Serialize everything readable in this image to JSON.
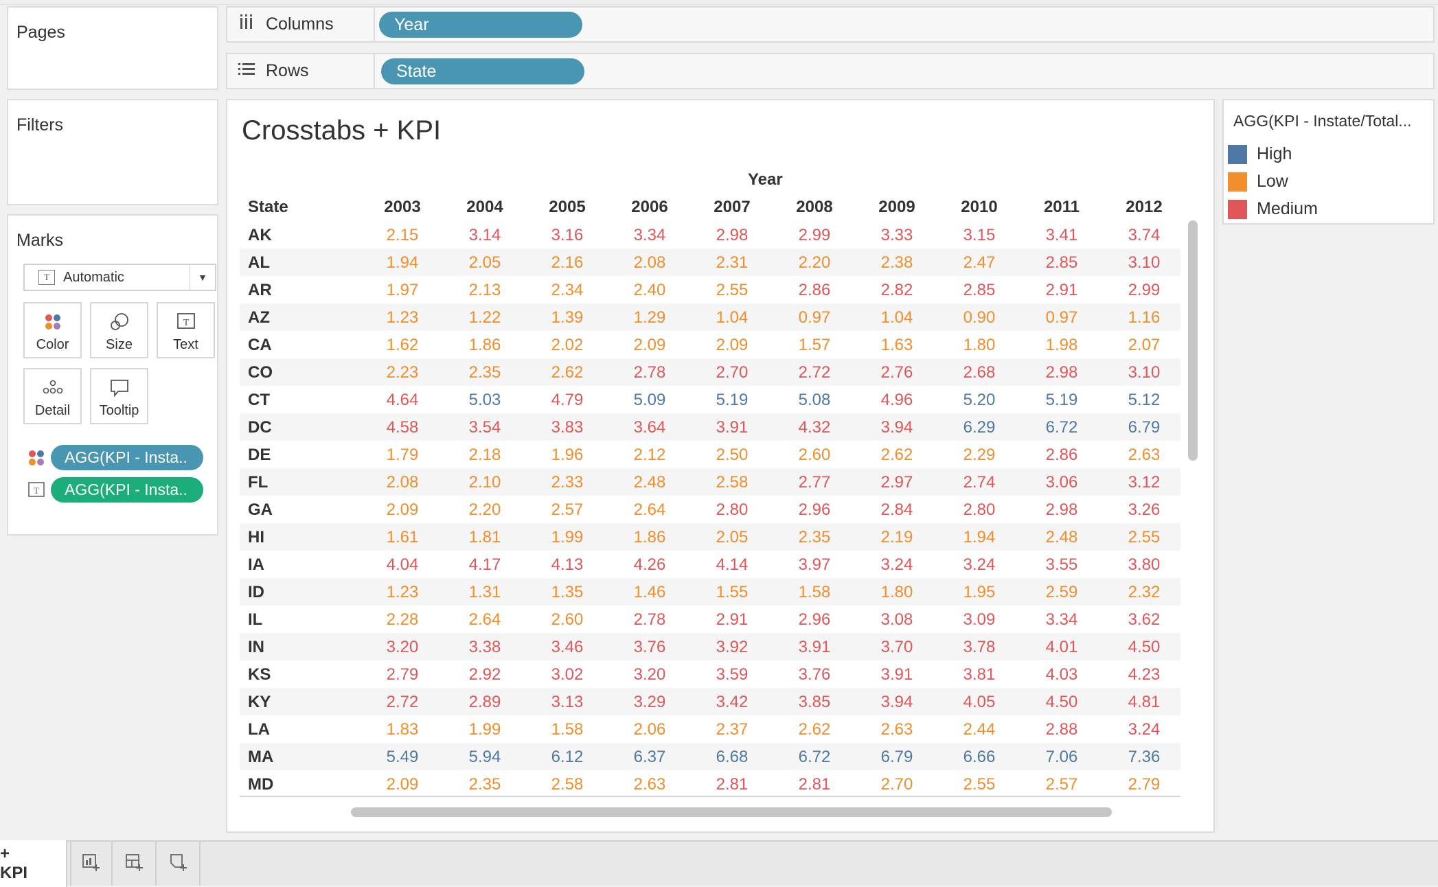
{
  "left_panels": {
    "pages_title": "Pages",
    "filters_title": "Filters",
    "marks_title": "Marks"
  },
  "shelves": {
    "columns": {
      "label": "Columns",
      "pill": "Year"
    },
    "rows": {
      "label": "Rows",
      "pill": "State"
    }
  },
  "marks": {
    "mark_type": "Automatic",
    "buttons": [
      "Color",
      "Size",
      "Text",
      "Detail",
      "Tooltip"
    ],
    "pills": [
      {
        "label": "AGG(KPI - Insta..",
        "color": "#4996b2"
      },
      {
        "label": "AGG(KPI - Insta..",
        "color": "#1bae7a"
      }
    ]
  },
  "view": {
    "title": "Crosstabs + KPI",
    "column_group": "Year",
    "row_header": "State",
    "years": [
      "2003",
      "2004",
      "2005",
      "2006",
      "2007",
      "2008",
      "2009",
      "2010",
      "2011",
      "2012"
    ],
    "rows": [
      {
        "state": "AK",
        "values": [
          "2.15",
          "3.14",
          "3.16",
          "3.34",
          "2.98",
          "2.99",
          "3.33",
          "3.15",
          "3.41",
          "3.74"
        ],
        "levels": [
          "L",
          "M",
          "M",
          "M",
          "M",
          "M",
          "M",
          "M",
          "M",
          "M"
        ]
      },
      {
        "state": "AL",
        "values": [
          "1.94",
          "2.05",
          "2.16",
          "2.08",
          "2.31",
          "2.20",
          "2.38",
          "2.47",
          "2.85",
          "3.10"
        ],
        "levels": [
          "L",
          "L",
          "L",
          "L",
          "L",
          "L",
          "L",
          "L",
          "M",
          "M"
        ]
      },
      {
        "state": "AR",
        "values": [
          "1.97",
          "2.13",
          "2.34",
          "2.40",
          "2.55",
          "2.86",
          "2.82",
          "2.85",
          "2.91",
          "2.99"
        ],
        "levels": [
          "L",
          "L",
          "L",
          "L",
          "L",
          "M",
          "M",
          "M",
          "M",
          "M"
        ]
      },
      {
        "state": "AZ",
        "values": [
          "1.23",
          "1.22",
          "1.39",
          "1.29",
          "1.04",
          "0.97",
          "1.04",
          "0.90",
          "0.97",
          "1.16"
        ],
        "levels": [
          "L",
          "L",
          "L",
          "L",
          "L",
          "L",
          "L",
          "L",
          "L",
          "L"
        ]
      },
      {
        "state": "CA",
        "values": [
          "1.62",
          "1.86",
          "2.02",
          "2.09",
          "2.09",
          "1.57",
          "1.63",
          "1.80",
          "1.98",
          "2.07"
        ],
        "levels": [
          "L",
          "L",
          "L",
          "L",
          "L",
          "L",
          "L",
          "L",
          "L",
          "L"
        ]
      },
      {
        "state": "CO",
        "values": [
          "2.23",
          "2.35",
          "2.62",
          "2.78",
          "2.70",
          "2.72",
          "2.76",
          "2.68",
          "2.98",
          "3.10"
        ],
        "levels": [
          "L",
          "L",
          "L",
          "M",
          "M",
          "M",
          "M",
          "M",
          "M",
          "M"
        ]
      },
      {
        "state": "CT",
        "values": [
          "4.64",
          "5.03",
          "4.79",
          "5.09",
          "5.19",
          "5.08",
          "4.96",
          "5.20",
          "5.19",
          "5.12"
        ],
        "levels": [
          "M",
          "H",
          "M",
          "H",
          "H",
          "H",
          "M",
          "H",
          "H",
          "H"
        ]
      },
      {
        "state": "DC",
        "values": [
          "4.58",
          "3.54",
          "3.83",
          "3.64",
          "3.91",
          "4.32",
          "3.94",
          "6.29",
          "6.72",
          "6.79"
        ],
        "levels": [
          "M",
          "M",
          "M",
          "M",
          "M",
          "M",
          "M",
          "H",
          "H",
          "H"
        ]
      },
      {
        "state": "DE",
        "values": [
          "1.79",
          "2.18",
          "1.96",
          "2.12",
          "2.50",
          "2.60",
          "2.62",
          "2.29",
          "2.86",
          "2.63"
        ],
        "levels": [
          "L",
          "L",
          "L",
          "L",
          "L",
          "L",
          "L",
          "L",
          "M",
          "L"
        ]
      },
      {
        "state": "FL",
        "values": [
          "2.08",
          "2.10",
          "2.33",
          "2.48",
          "2.58",
          "2.77",
          "2.97",
          "2.74",
          "3.06",
          "3.12"
        ],
        "levels": [
          "L",
          "L",
          "L",
          "L",
          "L",
          "M",
          "M",
          "M",
          "M",
          "M"
        ]
      },
      {
        "state": "GA",
        "values": [
          "2.09",
          "2.20",
          "2.57",
          "2.64",
          "2.80",
          "2.96",
          "2.84",
          "2.80",
          "2.98",
          "3.26"
        ],
        "levels": [
          "L",
          "L",
          "L",
          "L",
          "M",
          "M",
          "M",
          "M",
          "M",
          "M"
        ]
      },
      {
        "state": "HI",
        "values": [
          "1.61",
          "1.81",
          "1.99",
          "1.86",
          "2.05",
          "2.35",
          "2.19",
          "1.94",
          "2.48",
          "2.55"
        ],
        "levels": [
          "L",
          "L",
          "L",
          "L",
          "L",
          "L",
          "L",
          "L",
          "L",
          "L"
        ]
      },
      {
        "state": "IA",
        "values": [
          "4.04",
          "4.17",
          "4.13",
          "4.26",
          "4.14",
          "3.97",
          "3.24",
          "3.24",
          "3.55",
          "3.80"
        ],
        "levels": [
          "M",
          "M",
          "M",
          "M",
          "M",
          "M",
          "M",
          "M",
          "M",
          "M"
        ]
      },
      {
        "state": "ID",
        "values": [
          "1.23",
          "1.31",
          "1.35",
          "1.46",
          "1.55",
          "1.58",
          "1.80",
          "1.95",
          "2.59",
          "2.32"
        ],
        "levels": [
          "L",
          "L",
          "L",
          "L",
          "L",
          "L",
          "L",
          "L",
          "L",
          "L"
        ]
      },
      {
        "state": "IL",
        "values": [
          "2.28",
          "2.64",
          "2.60",
          "2.78",
          "2.91",
          "2.96",
          "3.08",
          "3.09",
          "3.34",
          "3.62"
        ],
        "levels": [
          "L",
          "L",
          "L",
          "M",
          "M",
          "M",
          "M",
          "M",
          "M",
          "M"
        ]
      },
      {
        "state": "IN",
        "values": [
          "3.20",
          "3.38",
          "3.46",
          "3.76",
          "3.92",
          "3.91",
          "3.70",
          "3.78",
          "4.01",
          "4.50"
        ],
        "levels": [
          "M",
          "M",
          "M",
          "M",
          "M",
          "M",
          "M",
          "M",
          "M",
          "M"
        ]
      },
      {
        "state": "KS",
        "values": [
          "2.79",
          "2.92",
          "3.02",
          "3.20",
          "3.59",
          "3.76",
          "3.91",
          "3.81",
          "4.03",
          "4.23"
        ],
        "levels": [
          "M",
          "M",
          "M",
          "M",
          "M",
          "M",
          "M",
          "M",
          "M",
          "M"
        ]
      },
      {
        "state": "KY",
        "values": [
          "2.72",
          "2.89",
          "3.13",
          "3.29",
          "3.42",
          "3.85",
          "3.94",
          "4.05",
          "4.50",
          "4.81"
        ],
        "levels": [
          "M",
          "M",
          "M",
          "M",
          "M",
          "M",
          "M",
          "M",
          "M",
          "M"
        ]
      },
      {
        "state": "LA",
        "values": [
          "1.83",
          "1.99",
          "1.58",
          "2.06",
          "2.37",
          "2.62",
          "2.63",
          "2.44",
          "2.88",
          "3.24"
        ],
        "levels": [
          "L",
          "L",
          "L",
          "L",
          "L",
          "L",
          "L",
          "L",
          "M",
          "M"
        ]
      },
      {
        "state": "MA",
        "values": [
          "5.49",
          "5.94",
          "6.12",
          "6.37",
          "6.68",
          "6.72",
          "6.79",
          "6.66",
          "7.06",
          "7.36"
        ],
        "levels": [
          "H",
          "H",
          "H",
          "H",
          "H",
          "H",
          "H",
          "H",
          "H",
          "H"
        ]
      },
      {
        "state": "MD",
        "values": [
          "2.09",
          "2.35",
          "2.58",
          "2.63",
          "2.81",
          "2.81",
          "2.70",
          "2.55",
          "2.57",
          "2.79"
        ],
        "levels": [
          "L",
          "L",
          "L",
          "L",
          "M",
          "M",
          "L",
          "L",
          "L",
          "L"
        ]
      }
    ]
  },
  "legend": {
    "title": "AGG(KPI - Instate/Total...",
    "items": [
      {
        "key": "H",
        "label": "High",
        "color": "#4e79a7"
      },
      {
        "key": "L",
        "label": "Low",
        "color": "#f28e2b"
      },
      {
        "key": "M",
        "label": "Medium",
        "color": "#e15759"
      }
    ]
  },
  "tabs": {
    "active": "+ KPI"
  }
}
